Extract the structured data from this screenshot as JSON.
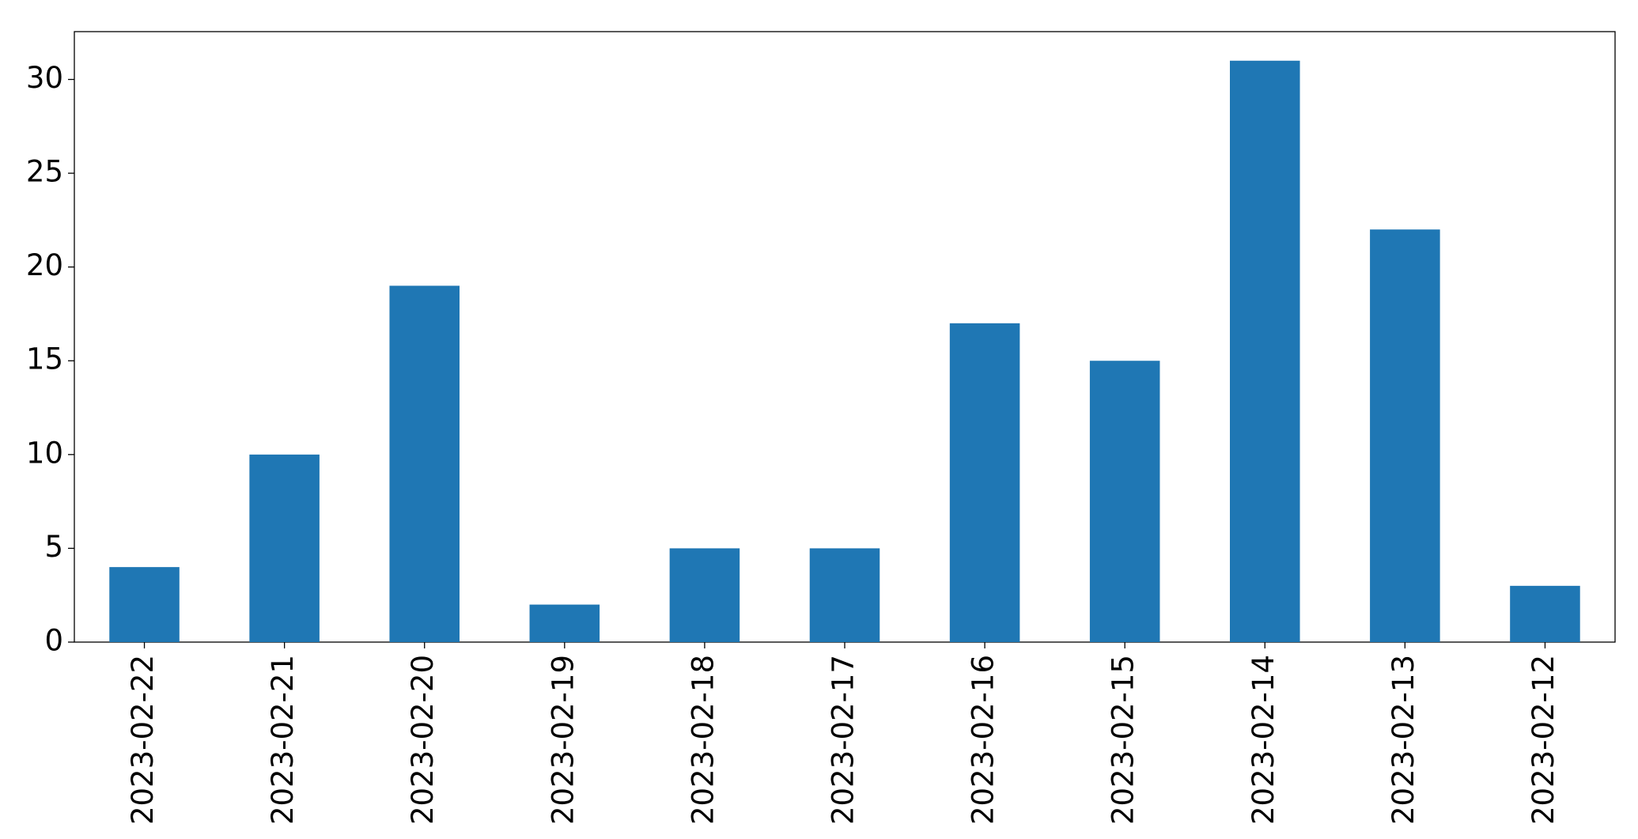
{
  "chart_data": {
    "type": "bar",
    "categories": [
      "2023-02-22",
      "2023-02-21",
      "2023-02-20",
      "2023-02-19",
      "2023-02-18",
      "2023-02-17",
      "2023-02-16",
      "2023-02-15",
      "2023-02-14",
      "2023-02-13",
      "2023-02-12"
    ],
    "values": [
      4,
      10,
      19,
      2,
      5,
      5,
      17,
      15,
      31,
      22,
      3
    ],
    "color": "#1f77b4",
    "ylim": [
      0,
      32.55
    ],
    "yticks": [
      0,
      5,
      10,
      15,
      20,
      25,
      30
    ],
    "grid": false
  }
}
